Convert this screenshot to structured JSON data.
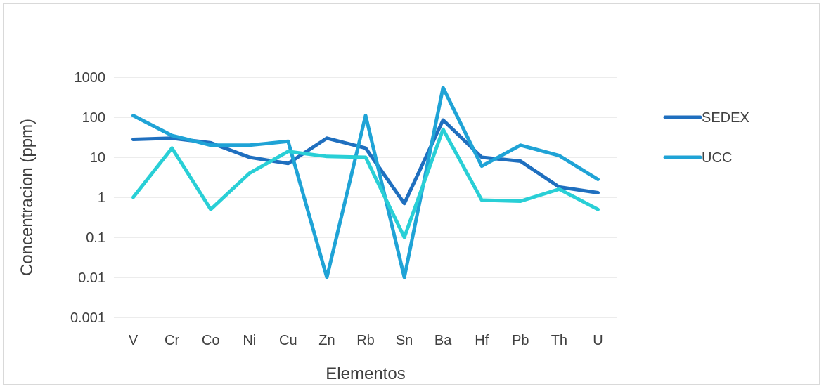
{
  "chart_data": {
    "type": "line",
    "title": "",
    "xlabel": "Elementos",
    "ylabel": "Concentracion (ppm)",
    "y_scale": "log",
    "ylim": [
      0.001,
      1000
    ],
    "y_ticks": [
      "0.001",
      "0.01",
      "0.1",
      "1",
      "10",
      "100",
      "1000"
    ],
    "categories": [
      "V",
      "Cr",
      "Co",
      "Ni",
      "Cu",
      "Zn",
      "Rb",
      "Sn",
      "Ba",
      "Hf",
      "Pb",
      "Th",
      "U"
    ],
    "grid": true,
    "legend_position": "right",
    "series": [
      {
        "name": "SEDEX",
        "color": "#1f6fbf",
        "values": [
          28,
          30,
          23,
          10,
          7,
          30,
          17,
          0.7,
          85,
          10,
          8,
          1.8,
          1.3
        ]
      },
      {
        "name": "UCC",
        "color": "#1fa3d6",
        "values": [
          110,
          35,
          20,
          20,
          25,
          0.01,
          110,
          0.01,
          550,
          6,
          20,
          11,
          2.8
        ]
      },
      {
        "name": "",
        "color": "#29cfd6",
        "values": [
          1,
          17,
          0.5,
          4,
          14,
          10.5,
          10,
          0.1,
          50,
          0.85,
          0.8,
          1.6,
          0.5
        ]
      }
    ]
  }
}
